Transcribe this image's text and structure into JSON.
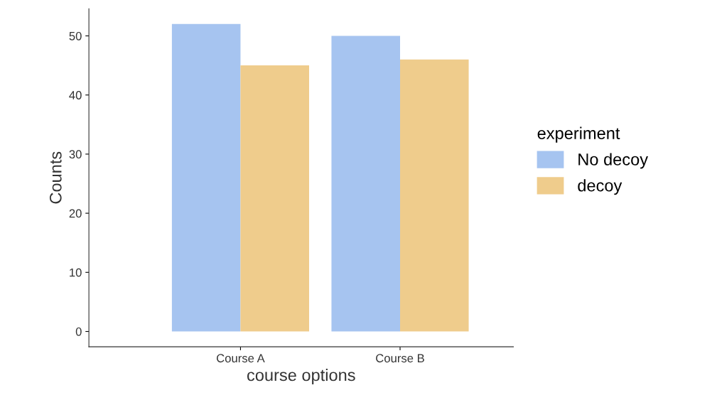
{
  "chart_data": {
    "type": "bar",
    "xlabel": "course options",
    "ylabel": "Counts",
    "legend_title": "experiment",
    "categories": [
      "Course A",
      "Course B"
    ],
    "series": [
      {
        "name": "No decoy",
        "color": "#a6c4f0",
        "values": [
          52,
          50
        ]
      },
      {
        "name": "decoy",
        "color": "#efcc8c",
        "values": [
          45,
          46
        ]
      }
    ],
    "ylim": [
      -2.6,
      54.6
    ],
    "yticks": [
      0,
      10,
      20,
      30,
      40,
      50
    ],
    "grid": false,
    "legend": "right"
  }
}
